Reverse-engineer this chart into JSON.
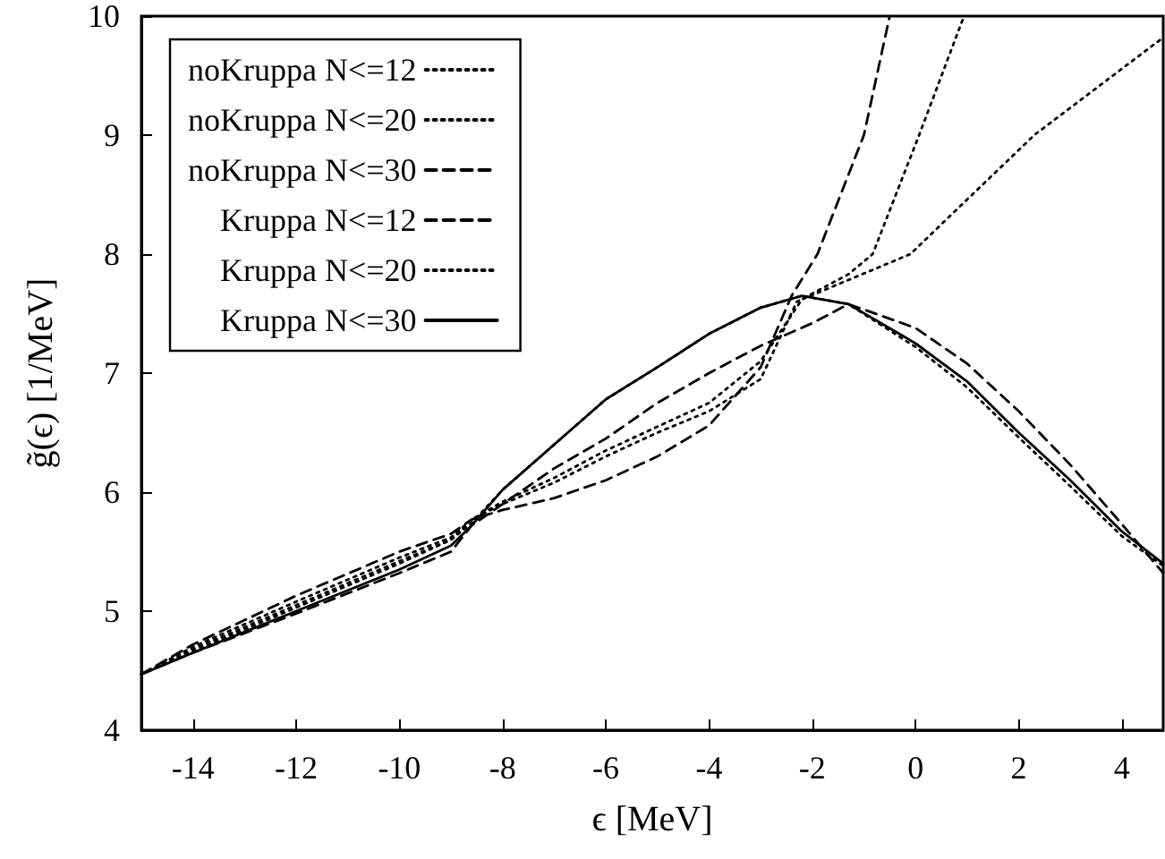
{
  "chart_data": {
    "type": "line",
    "xlabel": "ϵ [MeV]",
    "ylabel": "g̃(ϵ) [1/MeV]",
    "xlim": [
      -15,
      4.8
    ],
    "xticks": [
      -14,
      -12,
      -10,
      -8,
      -6,
      -4,
      -2,
      0,
      2,
      4
    ],
    "ylim": [
      4,
      10
    ],
    "yticks": [
      4,
      5,
      6,
      7,
      8,
      9,
      10
    ],
    "grid": false,
    "legend": "top left",
    "marker": "none",
    "series": [
      {
        "name": "noKruppa N<=12",
        "color": "#000000",
        "line_style": "dotted",
        "x": [
          -15,
          -14,
          -12,
          -10,
          -9,
          -8.6,
          -8,
          -7,
          -6,
          -5,
          -4,
          -3,
          -2.2,
          -0.1,
          2.3,
          4.8
        ],
        "values": [
          4.47,
          4.68,
          5.05,
          5.42,
          5.6,
          5.77,
          5.92,
          6.12,
          6.35,
          6.55,
          6.75,
          7.1,
          7.62,
          8,
          9,
          9.82
        ]
      },
      {
        "name": "noKruppa N<=20",
        "color": "#000000",
        "line_style": "dotted",
        "x": [
          -15,
          -14,
          -12,
          -10,
          -9,
          -8.6,
          -8,
          -7,
          -6,
          -5,
          -4,
          -3,
          -2.3,
          -1.3,
          -0.83,
          0.07,
          0.94
        ],
        "values": [
          4.47,
          4.7,
          5.08,
          5.45,
          5.62,
          5.77,
          5.9,
          6.08,
          6.3,
          6.5,
          6.68,
          6.95,
          7.6,
          7.83,
          8,
          9,
          10
        ]
      },
      {
        "name": "noKruppa N<=30",
        "color": "#000000",
        "line_style": "dashed",
        "x": [
          -15,
          -14,
          -12,
          -10,
          -9,
          -8.6,
          -8,
          -7,
          -6,
          -5,
          -4,
          -3,
          -2.4,
          -1.9,
          -1,
          -0.5
        ],
        "values": [
          4.47,
          4.72,
          5.13,
          5.5,
          5.65,
          5.77,
          5.85,
          5.95,
          6.1,
          6.3,
          6.56,
          7.05,
          7.65,
          8,
          9,
          10
        ]
      },
      {
        "name": "Kruppa N<=12",
        "color": "#000000",
        "line_style": "dashed",
        "x": [
          -15,
          -14,
          -12,
          -10,
          -9,
          -8.6,
          -8,
          -7,
          -6,
          -5,
          -4,
          -3,
          -2,
          -1.3,
          0,
          1,
          2,
          3,
          4,
          4.8
        ],
        "values": [
          4.47,
          4.65,
          4.98,
          5.32,
          5.5,
          5.72,
          5.9,
          6.2,
          6.45,
          6.75,
          7,
          7.23,
          7.42,
          7.58,
          7.38,
          7.08,
          6.68,
          6.23,
          5.73,
          5.32
        ]
      },
      {
        "name": "Kruppa N<=20",
        "color": "#000000",
        "line_style": "dotted",
        "x": [
          -15,
          -14,
          -12,
          -10,
          -9,
          -8.6,
          -8,
          -7,
          -6,
          -5,
          -4,
          -3,
          -2.2,
          -1.3,
          0,
          1,
          2,
          3,
          4,
          4.8
        ],
        "values": [
          4.47,
          4.66,
          5.03,
          5.4,
          5.6,
          5.74,
          6.02,
          6.4,
          6.78,
          7.05,
          7.33,
          7.55,
          7.65,
          7.58,
          7.22,
          6.88,
          6.46,
          6.05,
          5.63,
          5.38
        ]
      },
      {
        "name": "Kruppa N<=30",
        "color": "#000000",
        "line_style": "solid",
        "x": [
          -15,
          -14,
          -12,
          -10,
          -9,
          -8.6,
          -8,
          -7,
          -6,
          -5,
          -4,
          -3,
          -2.2,
          -1.3,
          0,
          1,
          2,
          3,
          4,
          4.8
        ],
        "values": [
          4.47,
          4.65,
          5,
          5.35,
          5.55,
          5.72,
          6.02,
          6.4,
          6.78,
          7.05,
          7.33,
          7.55,
          7.65,
          7.58,
          7.25,
          6.93,
          6.5,
          6.1,
          5.67,
          5.4
        ]
      }
    ]
  }
}
